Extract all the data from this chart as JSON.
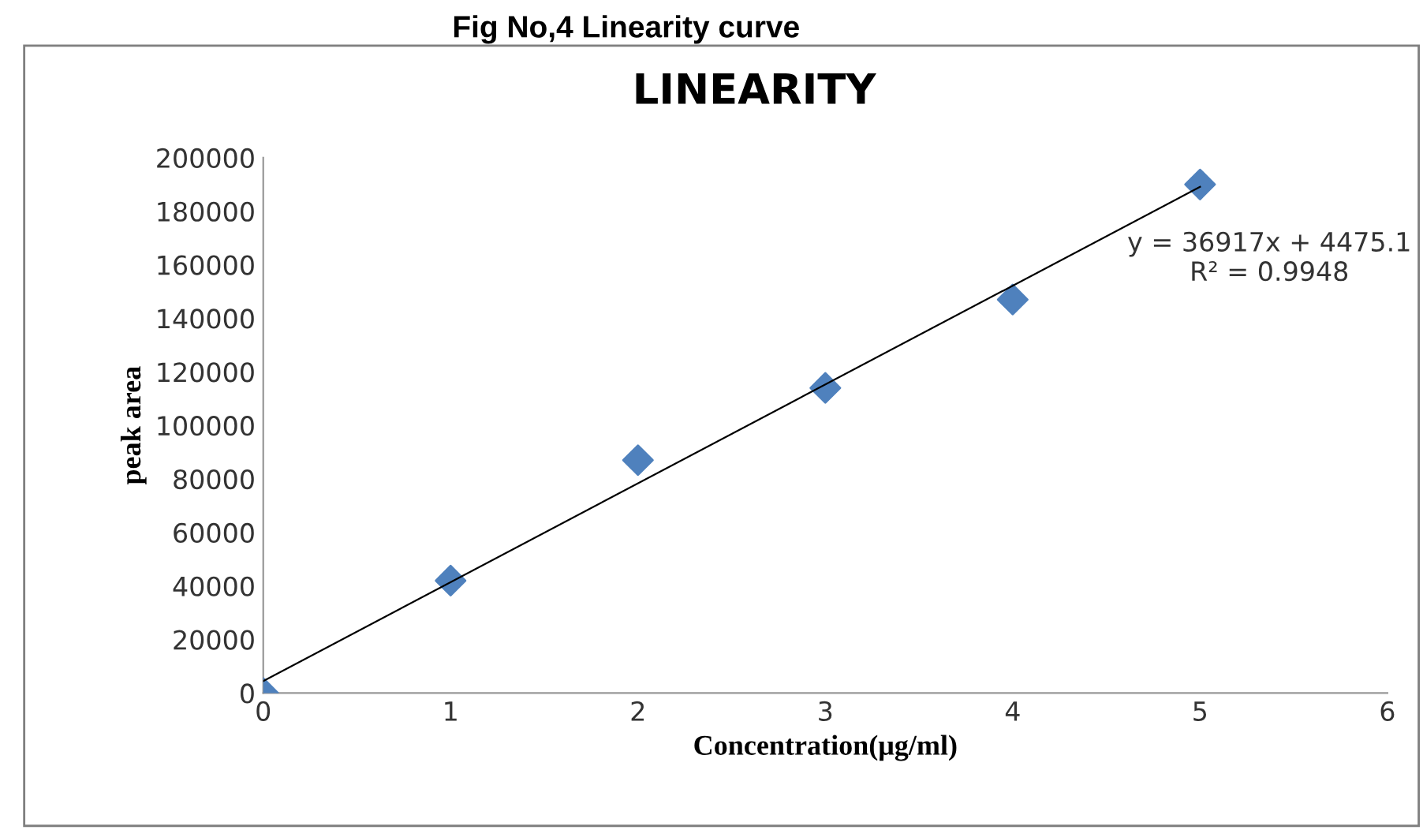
{
  "chart_data": {
    "type": "scatter",
    "title": "LINEARITY",
    "xlabel": "Concentration(μg/ml)",
    "ylabel": "peak area",
    "annotations": [
      "Fig No,4 Linearity curve",
      "y = 36917x + 4475.1\nR² = 0.9948"
    ],
    "x": [
      0,
      1,
      2,
      3,
      4,
      5
    ],
    "series": [
      {
        "color": "#4f81bd",
        "marker": "diamond",
        "values": [
          0,
          42000,
          87000,
          114000,
          147000,
          190000
        ]
      },
      {
        "type": "line",
        "color": "#000000",
        "marker": "none",
        "line_style": "solid",
        "x": [
          0,
          5
        ],
        "values": [
          4500,
          189100
        ]
      }
    ],
    "xlim": [
      0,
      6
    ],
    "ylim": [
      0,
      200000
    ],
    "xticks": [
      0,
      1,
      2,
      3,
      4,
      5,
      6
    ],
    "yticks": [
      0,
      20000,
      40000,
      60000,
      80000,
      100000,
      120000,
      140000,
      160000,
      180000,
      200000
    ],
    "grid": false,
    "legend": false
  }
}
